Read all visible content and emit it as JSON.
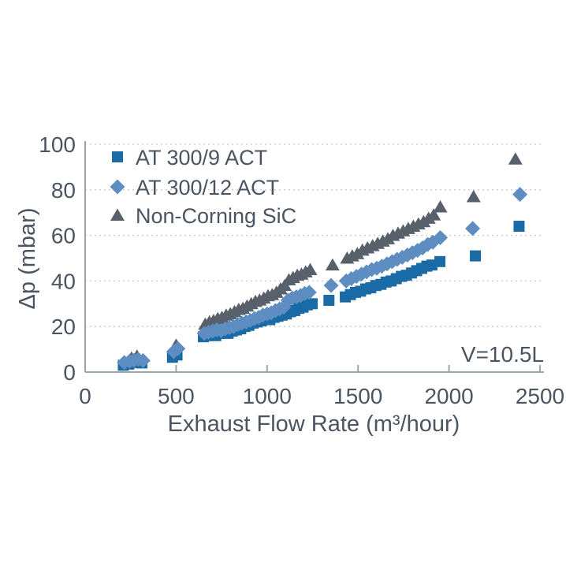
{
  "chart_data": {
    "type": "scatter",
    "title": "",
    "xlabel": "Exhaust Flow Rate (m³/hour)",
    "ylabel": "Δp (mbar)",
    "annotation": "V=10.5L",
    "xlim": [
      0,
      2500
    ],
    "ylim": [
      0,
      100
    ],
    "xticks": [
      0,
      500,
      1000,
      1500,
      2000,
      2500
    ],
    "yticks": [
      0,
      20,
      40,
      60,
      80,
      100
    ],
    "grid": "horizontal-dotted",
    "legend_position": "top-left-inside",
    "series": [
      {
        "name": "AT 300/9 ACT",
        "marker": "square",
        "color": "#1a6aa5",
        "points": [
          [
            210,
            3
          ],
          [
            240,
            3.5
          ],
          [
            262,
            4.2
          ],
          [
            285,
            4.6
          ],
          [
            312,
            4
          ],
          [
            480,
            6.5
          ],
          [
            505,
            7.5
          ],
          [
            650,
            15.5
          ],
          [
            672,
            16
          ],
          [
            695,
            16.5
          ],
          [
            718,
            16
          ],
          [
            740,
            17
          ],
          [
            763,
            17.5
          ],
          [
            786,
            17
          ],
          [
            809,
            18
          ],
          [
            832,
            18.5
          ],
          [
            855,
            19
          ],
          [
            878,
            20
          ],
          [
            900,
            20.5
          ],
          [
            923,
            21.5
          ],
          [
            946,
            22
          ],
          [
            969,
            22.5
          ],
          [
            992,
            23.5
          ],
          [
            1015,
            23
          ],
          [
            1038,
            24
          ],
          [
            1060,
            24.5
          ],
          [
            1083,
            25
          ],
          [
            1106,
            25.5
          ],
          [
            1129,
            26.5
          ],
          [
            1152,
            27
          ],
          [
            1175,
            28
          ],
          [
            1198,
            28.5
          ],
          [
            1221,
            29.5
          ],
          [
            1248,
            30
          ],
          [
            1340,
            31.5
          ],
          [
            1430,
            33
          ],
          [
            1458,
            34
          ],
          [
            1486,
            35
          ],
          [
            1514,
            35.5
          ],
          [
            1542,
            36.5
          ],
          [
            1570,
            37
          ],
          [
            1598,
            38
          ],
          [
            1626,
            38.5
          ],
          [
            1654,
            39.5
          ],
          [
            1682,
            40
          ],
          [
            1710,
            41
          ],
          [
            1738,
            42
          ],
          [
            1766,
            42.5
          ],
          [
            1794,
            43.5
          ],
          [
            1822,
            44.5
          ],
          [
            1850,
            45.5
          ],
          [
            1878,
            46.5
          ],
          [
            1906,
            47
          ],
          [
            1950,
            48.5
          ],
          [
            2145,
            51
          ],
          [
            2385,
            64
          ]
        ]
      },
      {
        "name": "AT 300/12 ACT",
        "marker": "diamond",
        "color": "#5e8dc1",
        "points": [
          [
            215,
            4.2
          ],
          [
            245,
            4.8
          ],
          [
            268,
            5.2
          ],
          [
            292,
            5.6
          ],
          [
            318,
            5
          ],
          [
            487,
            9
          ],
          [
            510,
            10.3
          ],
          [
            655,
            17
          ],
          [
            678,
            17.5
          ],
          [
            701,
            18
          ],
          [
            724,
            18.5
          ],
          [
            747,
            18.2
          ],
          [
            770,
            19
          ],
          [
            793,
            19.5
          ],
          [
            816,
            20
          ],
          [
            839,
            20.8
          ],
          [
            862,
            21.5
          ],
          [
            885,
            22
          ],
          [
            908,
            22.6
          ],
          [
            931,
            23.5
          ],
          [
            954,
            24
          ],
          [
            977,
            25
          ],
          [
            1000,
            25.5
          ],
          [
            1023,
            26
          ],
          [
            1046,
            27
          ],
          [
            1069,
            27.7
          ],
          [
            1092,
            28.5
          ],
          [
            1115,
            31.5
          ],
          [
            1138,
            32.5
          ],
          [
            1161,
            33
          ],
          [
            1184,
            33.6
          ],
          [
            1207,
            34.5
          ],
          [
            1232,
            35
          ],
          [
            1352,
            38
          ],
          [
            1435,
            40
          ],
          [
            1463,
            41
          ],
          [
            1491,
            42
          ],
          [
            1519,
            43
          ],
          [
            1547,
            44
          ],
          [
            1575,
            45
          ],
          [
            1603,
            45.6
          ],
          [
            1631,
            46.5
          ],
          [
            1659,
            47.5
          ],
          [
            1687,
            48.5
          ],
          [
            1715,
            49.5
          ],
          [
            1743,
            50.4
          ],
          [
            1771,
            51.4
          ],
          [
            1799,
            52.4
          ],
          [
            1827,
            53.4
          ],
          [
            1855,
            54.5
          ],
          [
            1883,
            56
          ],
          [
            1911,
            57
          ],
          [
            1952,
            59
          ],
          [
            2130,
            63
          ],
          [
            2390,
            78
          ]
        ]
      },
      {
        "name": "Non-Corning SiC",
        "marker": "triangle",
        "color": "#58606c",
        "points": [
          [
            255,
            6.2
          ],
          [
            285,
            7
          ],
          [
            500,
            11.8
          ],
          [
            660,
            21
          ],
          [
            683,
            22
          ],
          [
            706,
            22.6
          ],
          [
            729,
            23.5
          ],
          [
            752,
            24
          ],
          [
            775,
            25
          ],
          [
            798,
            25.6
          ],
          [
            821,
            26.5
          ],
          [
            844,
            27.5
          ],
          [
            867,
            28
          ],
          [
            890,
            29
          ],
          [
            913,
            30
          ],
          [
            936,
            31
          ],
          [
            959,
            31.6
          ],
          [
            982,
            32.5
          ],
          [
            1005,
            33.5
          ],
          [
            1028,
            34
          ],
          [
            1051,
            35
          ],
          [
            1074,
            36.5
          ],
          [
            1097,
            38
          ],
          [
            1120,
            40.5
          ],
          [
            1143,
            41.5
          ],
          [
            1166,
            42.5
          ],
          [
            1189,
            43
          ],
          [
            1212,
            44
          ],
          [
            1237,
            45
          ],
          [
            1360,
            47
          ],
          [
            1440,
            50
          ],
          [
            1468,
            51
          ],
          [
            1496,
            52
          ],
          [
            1524,
            53.5
          ],
          [
            1552,
            54.5
          ],
          [
            1580,
            55.5
          ],
          [
            1608,
            56.5
          ],
          [
            1636,
            57.5
          ],
          [
            1664,
            58.5
          ],
          [
            1692,
            60
          ],
          [
            1720,
            61
          ],
          [
            1748,
            62
          ],
          [
            1776,
            63
          ],
          [
            1804,
            64
          ],
          [
            1832,
            65
          ],
          [
            1860,
            66
          ],
          [
            1888,
            67.5
          ],
          [
            1916,
            69
          ],
          [
            1952,
            72.5
          ],
          [
            2135,
            77
          ],
          [
            2365,
            93.5
          ]
        ]
      }
    ]
  }
}
